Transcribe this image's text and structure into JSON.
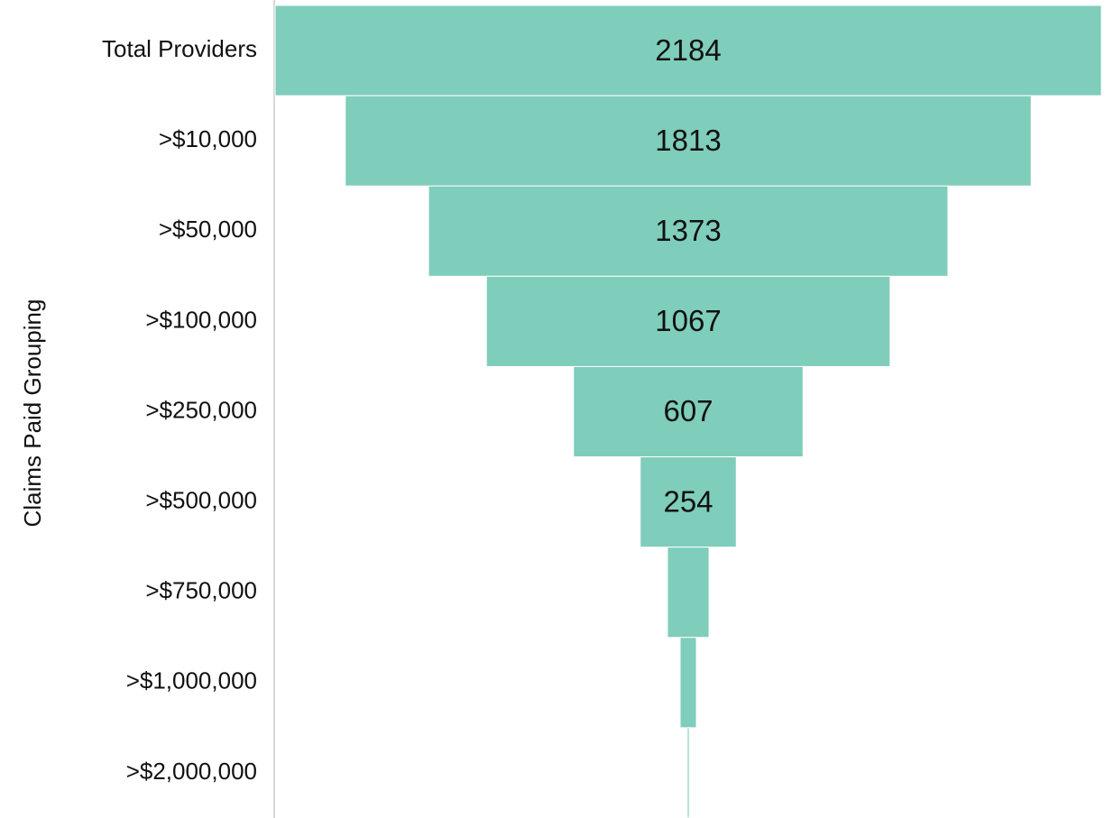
{
  "chart_data": {
    "type": "funnel",
    "y_axis_label": "Claims Paid Grouping",
    "categories": [
      "Total Providers",
      ">$10,000",
      ">$50,000",
      ">$100,000",
      ">$250,000",
      ">$500,000",
      ">$750,000",
      ">$1,000,000",
      ">$2,000,000"
    ],
    "values": [
      2184,
      1813,
      1373,
      1067,
      607,
      254,
      110,
      43,
      5
    ],
    "color": "#7fcdbb"
  }
}
